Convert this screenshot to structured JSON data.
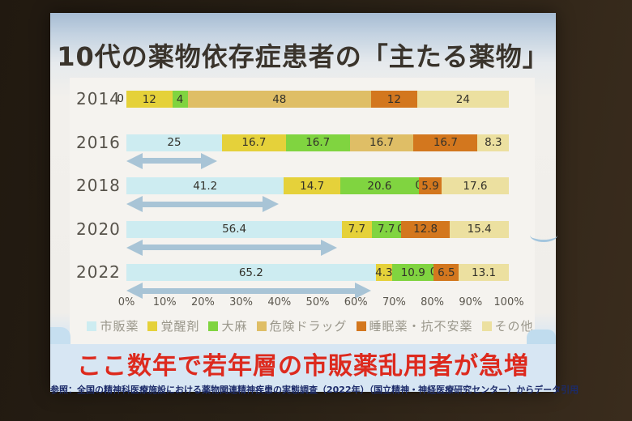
{
  "slide": {
    "title": "10代の薬物依存症患者の「主たる薬物」",
    "headline": "ここ数年で若年層の市販薬乱用者が急増",
    "reference": "参照：全国の精神科医療施設における薬物関連精神疾患の実態調査（2022年）（国立精神・神経医療研究センター）からデータ引用"
  },
  "chart_data": {
    "type": "bar",
    "variant": "horizontal-stacked-100percent",
    "title": "10代の薬物依存症患者の「主たる薬物」",
    "categories": [
      "2014",
      "2016",
      "2018",
      "2020",
      "2022"
    ],
    "series": [
      {
        "name": "市販薬",
        "color": "#cdecf1",
        "values": [
          0,
          25,
          41.2,
          56.4,
          65.2
        ]
      },
      {
        "name": "覚醒剤",
        "color": "#e5d13a",
        "values": [
          12,
          16.7,
          14.7,
          7.7,
          4.3
        ]
      },
      {
        "name": "大麻",
        "color": "#80d440",
        "values": [
          4,
          16.7,
          20.6,
          7.7,
          10.9
        ]
      },
      {
        "name": "危険ドラッグ",
        "color": "#dfbe66",
        "values": [
          48,
          16.7,
          0,
          0,
          0
        ]
      },
      {
        "name": "睡眠薬・抗不安薬",
        "color": "#d3771e",
        "values": [
          12,
          16.7,
          5.9,
          12.8,
          6.5
        ]
      },
      {
        "name": "その他",
        "color": "#ece0a0",
        "values": [
          24,
          8.3,
          17.6,
          15.4,
          13.1
        ]
      }
    ],
    "x_ticks": [
      "0%",
      "10%",
      "20%",
      "30%",
      "40%",
      "50%",
      "60%",
      "70%",
      "80%",
      "90%",
      "100%"
    ],
    "xlim": [
      0,
      100
    ],
    "grid": false,
    "legend_position": "bottom",
    "growth_arrows": {
      "description": "double-headed arrows under the 市販薬 segment showing its growth",
      "color": "#a8c4d6",
      "per_row": [
        false,
        true,
        true,
        true,
        true
      ]
    }
  }
}
